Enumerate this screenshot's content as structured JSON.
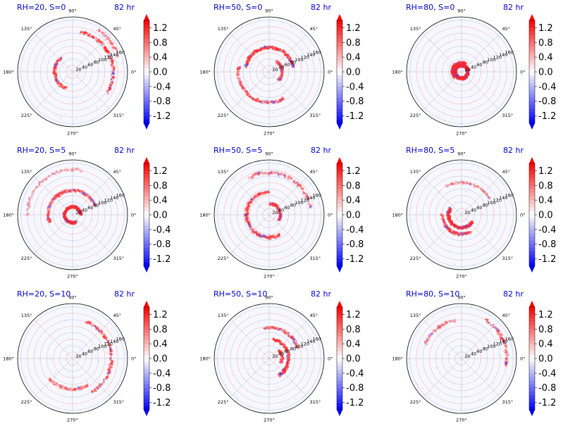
{
  "chart_data": {
    "type": "polar-contour",
    "layout": "3x3 grid",
    "theta_tick_labels": [
      "90°",
      "135°",
      "180°",
      "225°",
      "270°",
      "315°",
      "0°",
      "45°"
    ],
    "r_tick_labels": [
      "20",
      "40",
      "60",
      "80",
      "100",
      "120",
      "140",
      "160"
    ],
    "rlim": [
      0,
      170
    ],
    "colorbar": {
      "ticks": [
        "1.2",
        "0.8",
        "0.4",
        "0.0",
        "-0.4",
        "-0.8",
        "-1.2"
      ],
      "range": [
        -1.4,
        1.4
      ],
      "extend": "both",
      "colors": {
        "positive": "#ff0000",
        "zero": "#ffffff",
        "negative": "#0000ff"
      }
    },
    "grid": true,
    "panels": [
      {
        "title": "RH=20, S=0",
        "time": "82 hr",
        "features": [
          {
            "r": 125,
            "t0": -30,
            "t1": 80,
            "s": 1
          },
          {
            "r": 55,
            "t0": 130,
            "t1": 250,
            "s": 0.7
          },
          {
            "r": 150,
            "t0": 20,
            "t1": 60,
            "s": 0.6
          }
        ]
      },
      {
        "title": "RH=50, S=0",
        "time": "82 hr",
        "features": [
          {
            "r": 75,
            "t0": 10,
            "t1": 170,
            "s": 1
          },
          {
            "r": 95,
            "t0": 170,
            "t1": 300,
            "s": 0.8
          },
          {
            "r": 40,
            "t0": -40,
            "t1": 60,
            "s": 0.6
          }
        ]
      },
      {
        "title": "RH=80, S=0",
        "time": "82 hr",
        "features": [
          {
            "r": 20,
            "t0": 0,
            "t1": 360,
            "s": 1
          },
          {
            "r": 28,
            "t0": 60,
            "t1": 220,
            "s": 0.7
          }
        ]
      },
      {
        "title": "RH=20, S=5",
        "time": "82 hr",
        "features": [
          {
            "r": 25,
            "t0": 0,
            "t1": 300,
            "s": 0.8
          },
          {
            "r": 75,
            "t0": 20,
            "t1": 200,
            "s": 0.7
          },
          {
            "r": 140,
            "t0": 80,
            "t1": 180,
            "s": 0.5
          }
        ]
      },
      {
        "title": "RH=50, S=5",
        "time": "82 hr",
        "features": [
          {
            "r": 70,
            "t0": 90,
            "t1": 300,
            "s": 0.8
          },
          {
            "r": 130,
            "t0": 10,
            "t1": 120,
            "s": 0.7
          },
          {
            "r": 35,
            "t0": -30,
            "t1": 90,
            "s": 0.6
          }
        ]
      },
      {
        "title": "RH=80, S=5",
        "time": "82 hr",
        "features": [
          {
            "r": 40,
            "t0": 150,
            "t1": 330,
            "s": 1
          },
          {
            "r": 60,
            "t0": 180,
            "t1": 300,
            "s": 0.7
          },
          {
            "r": 100,
            "t0": 30,
            "t1": 120,
            "s": 0.4
          }
        ]
      },
      {
        "title": "RH=20, S=10",
        "time": "82 hr",
        "features": [
          {
            "r": 120,
            "t0": -60,
            "t1": 70,
            "s": 0.9
          },
          {
            "r": 95,
            "t0": 220,
            "t1": 300,
            "s": 0.6
          }
        ]
      },
      {
        "title": "RH=50, S=10",
        "time": "82 hr",
        "features": [
          {
            "r": 60,
            "t0": -60,
            "t1": 80,
            "s": 1
          },
          {
            "r": 95,
            "t0": 20,
            "t1": 100,
            "s": 0.8
          },
          {
            "r": 40,
            "t0": -20,
            "t1": 40,
            "s": 0.6
          }
        ]
      },
      {
        "title": "RH=80, S=10",
        "time": "82 hr",
        "features": [
          {
            "r": 140,
            "t0": -10,
            "t1": 60,
            "s": 0.9
          },
          {
            "r": 120,
            "t0": 100,
            "t1": 160,
            "s": 0.6
          }
        ]
      }
    ]
  }
}
